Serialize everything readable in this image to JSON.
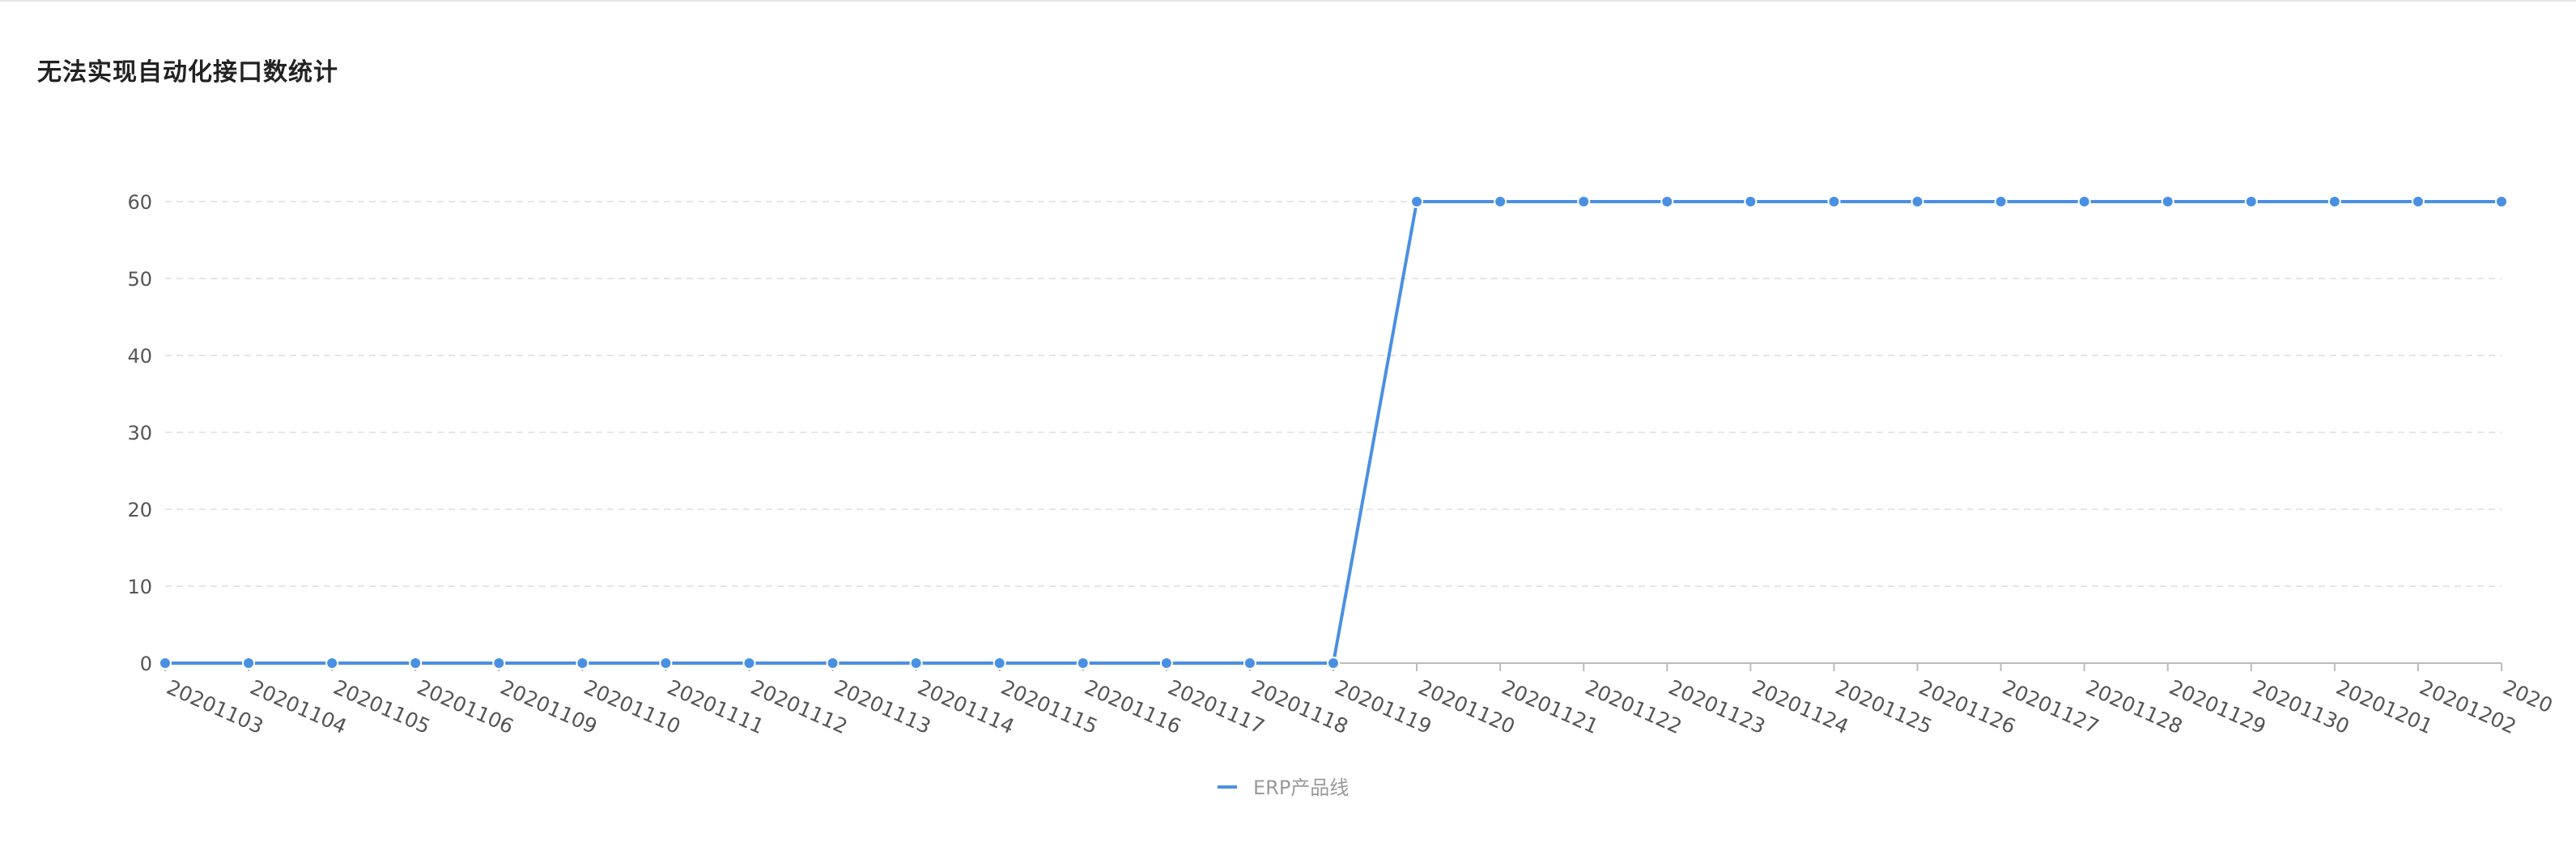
{
  "card": {
    "title": "无法实现自动化接口数统计"
  },
  "colors": {
    "series": "#4a90e2",
    "axis": "#bbbbbb",
    "grid": "#e6e6e6",
    "tick_text": "#555555",
    "legend_text": "#999999"
  },
  "chart_data": {
    "type": "line",
    "title": "无法实现自动化接口数统计",
    "xlabel": "",
    "ylabel": "",
    "categories": [
      "20201103",
      "20201104",
      "20201105",
      "20201106",
      "20201109",
      "20201110",
      "20201111",
      "20201112",
      "20201113",
      "20201114",
      "20201115",
      "20201116",
      "20201117",
      "20201118",
      "20201119",
      "20201120",
      "20201121",
      "20201122",
      "20201123",
      "20201124",
      "20201125",
      "20201126",
      "20201127",
      "20201128",
      "20201129",
      "20201130",
      "20201201",
      "20201202",
      "2020"
    ],
    "series": [
      {
        "name": "ERP产品线",
        "values": [
          0,
          0,
          0,
          0,
          0,
          0,
          0,
          0,
          0,
          0,
          0,
          0,
          0,
          0,
          0,
          60,
          60,
          60,
          60,
          60,
          60,
          60,
          60,
          60,
          60,
          60,
          60,
          60,
          60
        ],
        "marker": "circle"
      }
    ],
    "ylim": [
      0,
      60
    ],
    "yticks": [
      0,
      10,
      20,
      30,
      40,
      50,
      60
    ],
    "grid": "horizontal-dashed",
    "legend_position": "bottom-center"
  }
}
